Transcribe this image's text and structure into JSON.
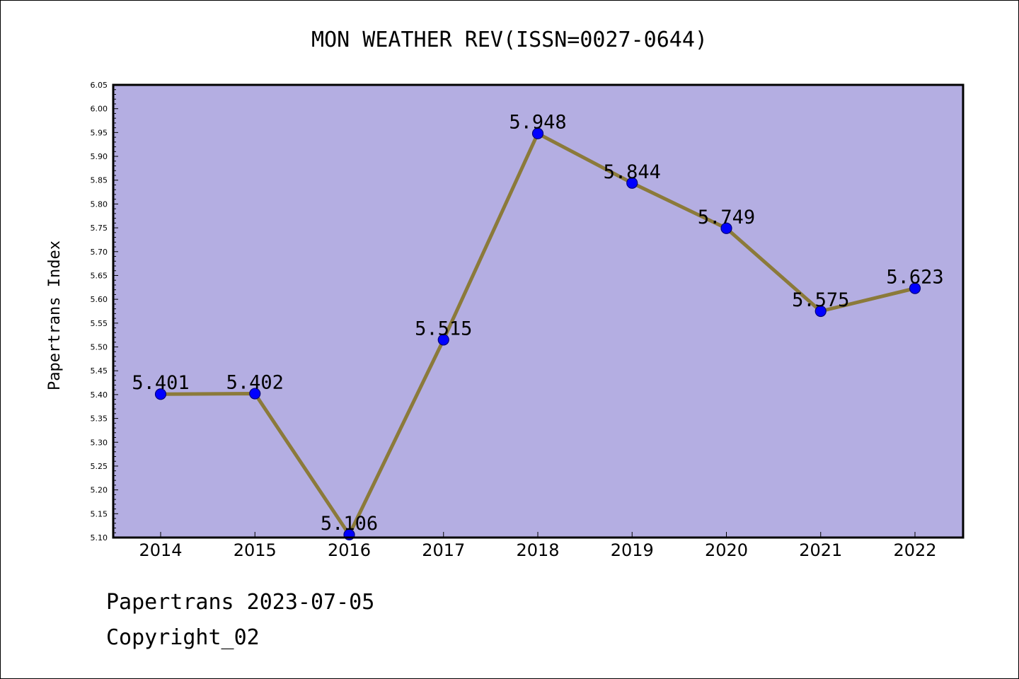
{
  "chart_data": {
    "type": "line",
    "title": "MON WEATHER REV(ISSN=0027-0644)",
    "xlabel": "",
    "ylabel": "Papertrans Index",
    "categories": [
      "2014",
      "2015",
      "2016",
      "2017",
      "2018",
      "2019",
      "2020",
      "2021",
      "2022"
    ],
    "values": [
      5.401,
      5.402,
      5.106,
      5.515,
      5.948,
      5.844,
      5.749,
      5.575,
      5.623
    ],
    "data_labels": [
      "5.401",
      "5.402",
      "5.106",
      "5.515",
      "5.948",
      "5.844",
      "5.749",
      "5.575",
      "5.623"
    ],
    "ylim": [
      5.1,
      6.05
    ],
    "yticks": [
      "5.10",
      "5.15",
      "5.20",
      "5.25",
      "5.30",
      "5.35",
      "5.40",
      "5.45",
      "5.50",
      "5.55",
      "5.60",
      "5.65",
      "5.70",
      "5.75",
      "5.80",
      "5.85",
      "5.90",
      "5.95",
      "6.00",
      "6.05"
    ],
    "grid": false,
    "colors": {
      "plot_background": "#b4aee2",
      "line": "#8b7a3a",
      "marker": "#0000ff",
      "marker_edge": "#00007a"
    }
  },
  "footer": {
    "line1": "Papertrans 2023-07-05",
    "line2": "Copyright_02"
  }
}
